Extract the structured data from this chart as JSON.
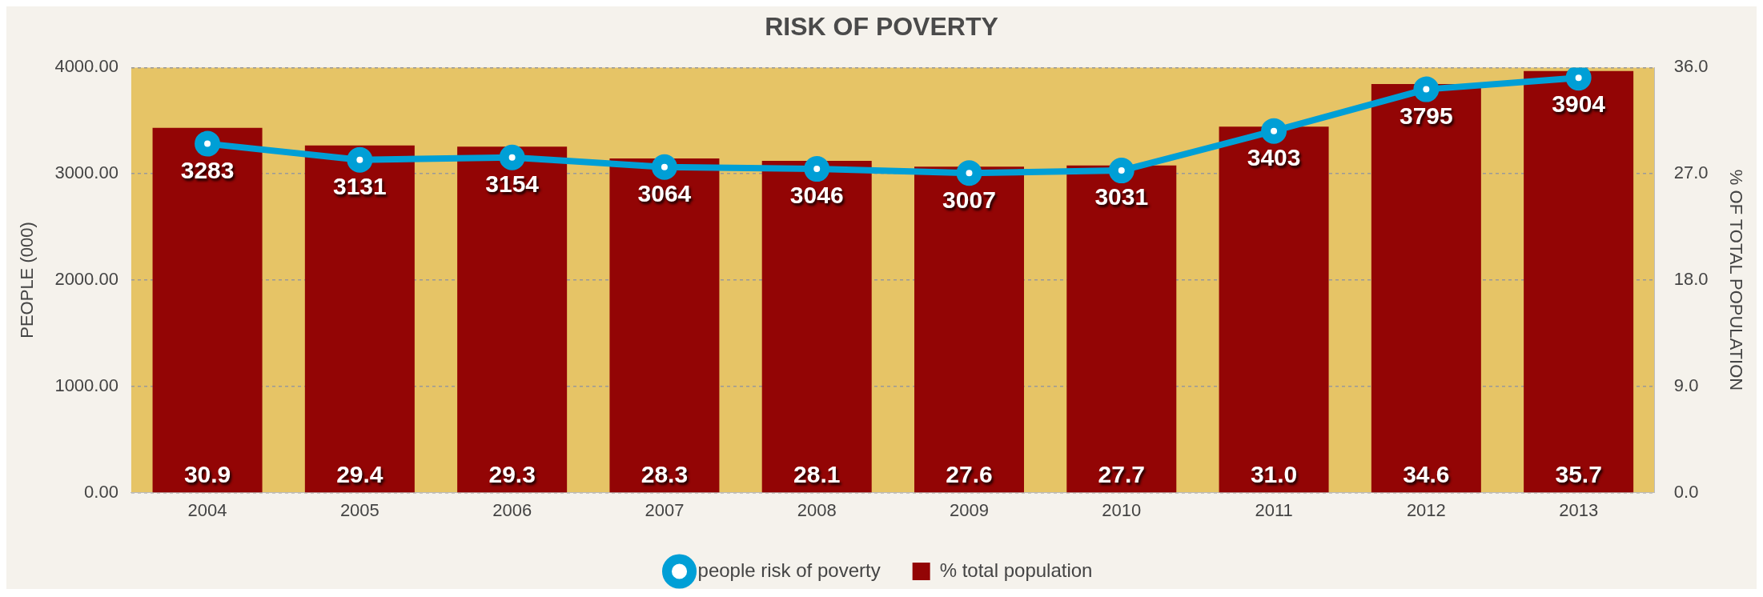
{
  "chart_data": {
    "type": "bar",
    "title": "RISK OF POVERTY",
    "ylabel": "PEOPLE (000)",
    "y2label": "% OF TOTAL POPULATION",
    "categories": [
      "2004",
      "2005",
      "2006",
      "2007",
      "2008",
      "2009",
      "2010",
      "2011",
      "2012",
      "2013"
    ],
    "series": [
      {
        "name": "people risk of poverty",
        "type": "line",
        "color": "#009fd6",
        "values": [
          3283,
          3131,
          3154,
          3064,
          3046,
          3007,
          3031,
          3403,
          3795,
          3904
        ]
      },
      {
        "name": "% total population",
        "axis": "y2",
        "color": "#930505",
        "values": [
          30.9,
          29.4,
          29.3,
          28.3,
          28.1,
          27.6,
          27.7,
          31.0,
          34.6,
          35.7
        ],
        "value_labels": [
          "30.9",
          "29.4",
          "29.3",
          "28.3",
          "28.1",
          "27.6",
          "27.7",
          "31.0",
          "34.6",
          "35.7"
        ]
      }
    ],
    "ylim": [
      0,
      4000
    ],
    "yticks": [
      {
        "value": 0,
        "label": "0.00"
      },
      {
        "value": 1000,
        "label": "1000.00"
      },
      {
        "value": 2000,
        "label": "2000.00"
      },
      {
        "value": 3000,
        "label": "3000.00"
      },
      {
        "value": 4000,
        "label": "4000.00"
      }
    ],
    "y2lim": [
      0,
      36
    ],
    "y2ticks": [
      {
        "value": 0,
        "label": "0.0"
      },
      {
        "value": 9,
        "label": "9.0"
      },
      {
        "value": 18,
        "label": "18.0"
      },
      {
        "value": 27,
        "label": "27.0"
      },
      {
        "value": 36,
        "label": "36.0"
      }
    ],
    "bands": [
      {
        "axis": "y",
        "from": 0,
        "to": 4000,
        "color": "#e6c466"
      }
    ],
    "grid": "y",
    "legend": "bottom",
    "marker": "circle",
    "line_style": "solid",
    "data_labels": true
  }
}
